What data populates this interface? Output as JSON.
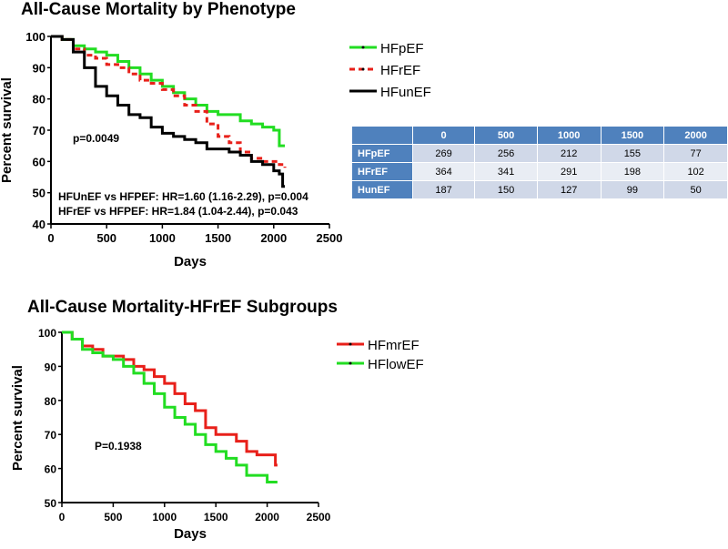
{
  "chart_data": [
    {
      "type": "line",
      "title": "All-Cause Mortality by Phenotype",
      "xlabel": "Days",
      "ylabel": "Percent survival",
      "xlim": [
        0,
        2500
      ],
      "ylim": [
        40,
        100
      ],
      "xticks": [
        "0",
        "500",
        "1000",
        "1500",
        "2000",
        "2500"
      ],
      "yticks": [
        "40",
        "50",
        "60",
        "70",
        "80",
        "90",
        "100"
      ],
      "legend_position": "right",
      "annotations": [
        "p=0.0049",
        "HFUnEF vs HFPEF: HR=1.60 (1.16-2.29), p=0.004",
        "HFrEF vs HFPEF: HR=1.84 (1.04-2.44), p=0.043"
      ],
      "series": [
        {
          "name": "HFpEF",
          "color": "#22dd22",
          "style": "solid",
          "x": [
            0,
            100,
            200,
            300,
            400,
            500,
            600,
            700,
            800,
            900,
            1000,
            1100,
            1200,
            1300,
            1400,
            1500,
            1600,
            1700,
            1800,
            1900,
            2000,
            2050,
            2100
          ],
          "y": [
            100,
            99,
            97,
            96,
            95,
            94,
            92,
            90,
            88,
            86,
            84,
            82,
            80,
            78,
            76,
            75,
            75,
            73,
            72,
            71,
            70,
            65,
            65
          ]
        },
        {
          "name": "HFrEF",
          "color": "#e8201a",
          "style": "dashed",
          "x": [
            0,
            100,
            200,
            300,
            400,
            500,
            600,
            700,
            800,
            900,
            1000,
            1100,
            1200,
            1300,
            1400,
            1500,
            1600,
            1700,
            1800,
            1900,
            2000,
            2050,
            2100
          ],
          "y": [
            100,
            99,
            96,
            94,
            93,
            91,
            90,
            88,
            86,
            85,
            83,
            81,
            78,
            76,
            72,
            68,
            66,
            63,
            61,
            60,
            60,
            59,
            58
          ]
        },
        {
          "name": "HFunEF",
          "color": "#000000",
          "style": "solid",
          "x": [
            0,
            100,
            200,
            300,
            400,
            500,
            600,
            700,
            800,
            900,
            1000,
            1100,
            1200,
            1300,
            1400,
            1500,
            1600,
            1700,
            1800,
            1900,
            2000,
            2050,
            2080,
            2100
          ],
          "y": [
            100,
            99,
            95,
            90,
            84,
            81,
            78,
            75,
            74,
            71,
            69,
            68,
            67,
            66,
            64,
            64,
            63,
            62,
            60,
            59,
            57,
            56,
            52,
            52
          ]
        }
      ]
    },
    {
      "type": "table",
      "columns": [
        "",
        "0",
        "500",
        "1000",
        "1500",
        "2000"
      ],
      "rows": [
        {
          "label": "HFpEF",
          "values": [
            "269",
            "256",
            "212",
            "155",
            "77"
          ]
        },
        {
          "label": "HFrEF",
          "values": [
            "364",
            "341",
            "291",
            "198",
            "102"
          ]
        },
        {
          "label": "HunEF",
          "values": [
            "187",
            "150",
            "127",
            "99",
            "50"
          ]
        }
      ]
    },
    {
      "type": "line",
      "title": "All-Cause Mortality-HFrEF Subgroups",
      "xlabel": "Days",
      "ylabel": "Percent survival",
      "xlim": [
        0,
        2500
      ],
      "ylim": [
        50,
        100
      ],
      "xticks": [
        "0",
        "500",
        "1000",
        "1500",
        "2000",
        "2500"
      ],
      "yticks": [
        "50",
        "60",
        "70",
        "80",
        "90",
        "100"
      ],
      "legend_position": "right",
      "annotations": [
        "P=0.1938"
      ],
      "series": [
        {
          "name": "HFmrEF",
          "color": "#e8201a",
          "style": "solid",
          "x": [
            0,
            100,
            200,
            300,
            400,
            500,
            600,
            700,
            800,
            900,
            1000,
            1100,
            1200,
            1300,
            1400,
            1500,
            1600,
            1700,
            1800,
            1900,
            2000,
            2080,
            2100
          ],
          "y": [
            100,
            98,
            96,
            95,
            93,
            93,
            92,
            90,
            89,
            87,
            85,
            82,
            79,
            77,
            72,
            70,
            70,
            68,
            65,
            64,
            64,
            61,
            61
          ]
        },
        {
          "name": "HFlowEF",
          "color": "#22dd22",
          "style": "solid",
          "x": [
            0,
            100,
            200,
            300,
            400,
            500,
            600,
            700,
            800,
            900,
            1000,
            1100,
            1200,
            1300,
            1400,
            1500,
            1600,
            1700,
            1800,
            1900,
            2000,
            2100
          ],
          "y": [
            100,
            98,
            95,
            94,
            93,
            92,
            90,
            88,
            85,
            82,
            78,
            75,
            73,
            70,
            67,
            65,
            63,
            61,
            58,
            58,
            56,
            56
          ]
        }
      ]
    }
  ]
}
